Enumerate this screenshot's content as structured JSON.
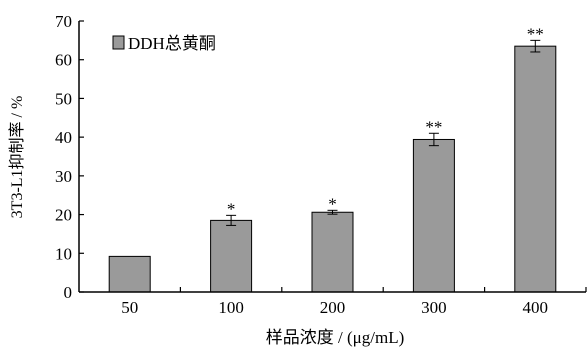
{
  "chart_data": {
    "type": "bar",
    "categories": [
      "50",
      "100",
      "200",
      "300",
      "400"
    ],
    "series": [
      {
        "name": "DDH总黄酮",
        "values": [
          9.2,
          18.5,
          20.6,
          39.4,
          63.5
        ],
        "errors": [
          0,
          1.3,
          0.5,
          1.6,
          1.5
        ],
        "significance": [
          "",
          "*",
          "*",
          "**",
          "**"
        ]
      }
    ],
    "ylim": [
      0,
      70
    ],
    "yticks": [
      "0",
      "10",
      "20",
      "30",
      "40",
      "50",
      "60",
      "70"
    ],
    "ylabel": "3T3-L1抑制率 / %",
    "xlabel": "样品浓度 / (μg/mL)",
    "legend_position": "top-left",
    "bar_color": "#9a9a9a",
    "grid": false
  }
}
